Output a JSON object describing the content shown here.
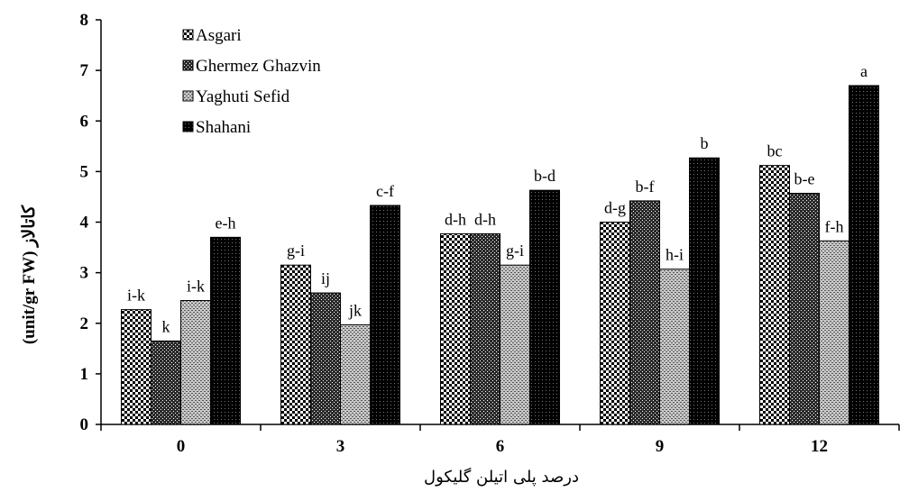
{
  "chart_data": {
    "type": "bar",
    "title": "",
    "xlabel": "درصد پلی اتیلن گلیکول",
    "ylabel": "کاتالاز (unit/gr FW)",
    "ylim": [
      0,
      8
    ],
    "yticks": [
      0,
      1,
      2,
      3,
      4,
      5,
      6,
      7,
      8
    ],
    "categories": [
      "0",
      "3",
      "6",
      "9",
      "12"
    ],
    "grid": false,
    "legend_position": "top-left",
    "series": [
      {
        "name": "Asgari",
        "color": "#000000",
        "pattern": "checker",
        "values": [
          2.27,
          3.15,
          3.77,
          4.0,
          5.12
        ],
        "labels": [
          "i-k",
          "g-i",
          "d-h",
          "d-g",
          "bc"
        ]
      },
      {
        "name": "Ghermez Ghazvin",
        "color": "#000000",
        "pattern": "dark-dots",
        "values": [
          1.65,
          2.6,
          3.77,
          4.42,
          4.57
        ],
        "labels": [
          "k",
          "ij",
          "d-h",
          "b-f",
          "b-e"
        ]
      },
      {
        "name": "Yaghuti Sefid",
        "color": "#000000",
        "pattern": "light-dots",
        "values": [
          2.45,
          1.97,
          3.15,
          3.07,
          3.63
        ],
        "labels": [
          "i-k",
          "jk",
          "g-i",
          "h-i",
          "f-h"
        ]
      },
      {
        "name": "Shahani",
        "color": "#000000",
        "pattern": "dense-dots",
        "values": [
          3.7,
          4.33,
          4.63,
          5.27,
          6.7
        ],
        "labels": [
          "e-h",
          "c-f",
          "b-d",
          "b",
          "a"
        ]
      }
    ]
  }
}
